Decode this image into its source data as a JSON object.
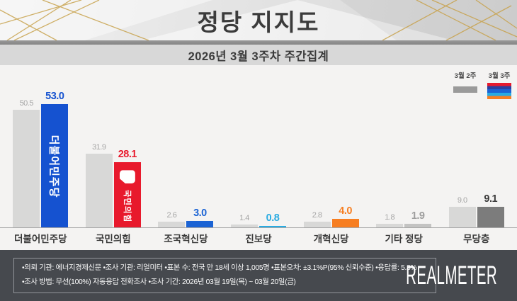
{
  "header": {
    "title": "정당 지지도",
    "subtitle": "2026년 3월 3주차 주간집계"
  },
  "legend": {
    "prev_label": "3월 2주",
    "curr_label": "3월 3주",
    "prev_color": "#9a9a9a",
    "curr_swatch_colors": [
      "#E8192C",
      "#2B3F9E",
      "#1B63D4",
      "#29ABE2",
      "#F77E21"
    ]
  },
  "chart_data": {
    "type": "bar",
    "title": "정당 지지도",
    "subtitle": "2026년 3월 3주차 주간집계",
    "unit": "%",
    "categories": [
      "더불어민주당",
      "국민의힘",
      "조국혁신당",
      "진보당",
      "개혁신당",
      "기타 정당",
      "무당층"
    ],
    "series": [
      {
        "name": "3월 2주",
        "values": [
          50.5,
          31.9,
          2.6,
          1.4,
          2.8,
          1.8,
          9.0
        ],
        "color": "#d8d8d7",
        "label_color": "#a5a5a5"
      },
      {
        "name": "3월 3주",
        "values": [
          53.0,
          28.1,
          3.0,
          0.8,
          4.0,
          1.9,
          9.1
        ],
        "colors": [
          "#1552D0",
          "#E8192C",
          "#1B63D4",
          "#29ABE2",
          "#F77E21",
          "#c3c3c2",
          "#7c7c7c"
        ],
        "label_colors": [
          "#1552D0",
          "#E8192C",
          "#1B63D4",
          "#29ABE2",
          "#F77E21",
          "#9e9e9e",
          "#3c3c3c"
        ]
      }
    ],
    "bar_overlays": [
      {
        "text": "더불어민주당",
        "logo": false
      },
      {
        "text": "국민의힘",
        "logo": true
      },
      null,
      null,
      null,
      null,
      null
    ],
    "ylim": [
      0,
      60
    ],
    "grid": false,
    "legend_position": "top-right",
    "value_labels": true
  },
  "footer": {
    "line1": "•의뢰 기관: 에너지경제신문  •조사 기관: 리얼미터 •표본 수: 전국 만 18세 이상 1,005명 •표본오차: ±3.1%P(95% 신뢰수준) •응답률: 5.3%",
    "line2": "•조사 방법: 무선(100%) 자동응답 전화조사 •조사 기간: 2026년 03월 19일(목) ~ 03월 20일(금)",
    "logo": "REALMETER"
  }
}
